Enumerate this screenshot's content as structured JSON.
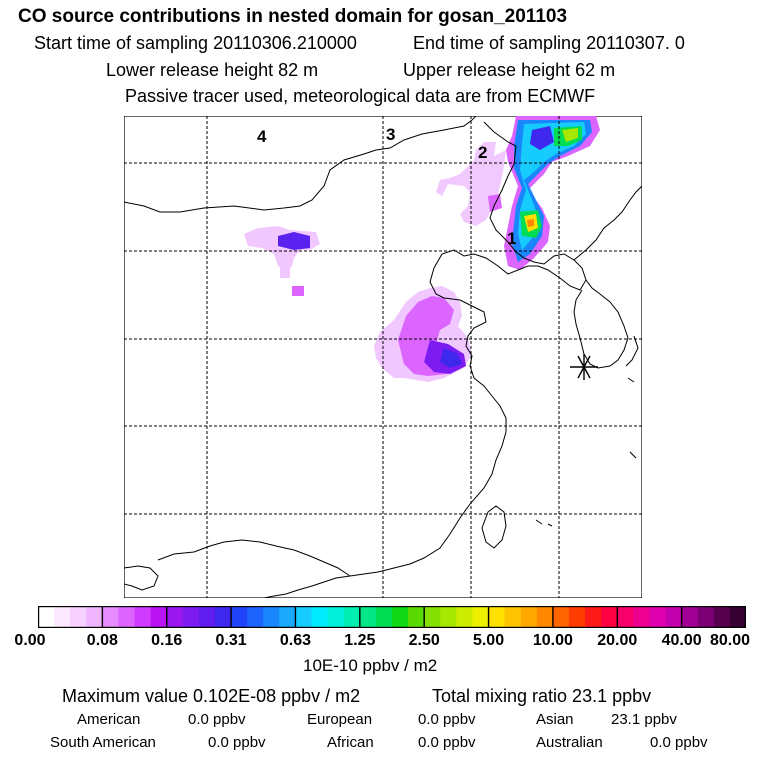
{
  "header": {
    "title": "CO  source contributions in nested domain for gosan_201103",
    "start_sampling": "Start time of sampling 20110306.210000",
    "end_sampling": "End time of sampling 20110307.     0",
    "lower_release": "Lower release height   82 m",
    "upper_release": "Upper release height   62 m",
    "tracer_note": "Passive tracer used, meteorological data are from ECMWF"
  },
  "map": {
    "zone_labels": [
      "4",
      "3",
      "2",
      "1"
    ],
    "receptor_marker": "star-icon"
  },
  "colorbar": {
    "tick_labels": [
      "0.00",
      "0.08",
      "0.16",
      "0.31",
      "0.63",
      "1.25",
      "2.50",
      "5.00",
      "10.00",
      "20.00",
      "40.00",
      "80.00"
    ],
    "colors": [
      "#ffffff",
      "#fce8ff",
      "#f6d0ff",
      "#eeb4ff",
      "#e58dff",
      "#dc64ff",
      "#cf3cff",
      "#ba14f4",
      "#9a18ee",
      "#7d1cf0",
      "#601eee",
      "#3f28ee",
      "#2244f8",
      "#1c64fb",
      "#1a86fb",
      "#1aa8fb",
      "#16ccff",
      "#00ecff",
      "#00f0dc",
      "#00eeb0",
      "#00e686",
      "#00dc54",
      "#10d814",
      "#5ada00",
      "#84e000",
      "#a8e800",
      "#cced00",
      "#eef000",
      "#ffe000",
      "#ffc400",
      "#ffa800",
      "#ff8800",
      "#ff6400",
      "#ff3c00",
      "#ff1a1a",
      "#ff0044",
      "#f8006a",
      "#ee0090",
      "#de00ac",
      "#c200ae",
      "#a20094",
      "#7c0074",
      "#56004e",
      "#360030"
    ],
    "units": "10E-10 ppbv / m2"
  },
  "stats": {
    "max_value": "Maximum value  0.102E-08 ppbv / m2",
    "total_mixing": "Total mixing ratio       23.1 ppbv",
    "regions": [
      {
        "name": "American",
        "value": "0.0 ppbv"
      },
      {
        "name": "European",
        "value": "0.0 ppbv"
      },
      {
        "name": "Asian",
        "value": "23.1 ppbv"
      },
      {
        "name": "South American",
        "value": "0.0 ppbv"
      },
      {
        "name": "African",
        "value": "0.0 ppbv"
      },
      {
        "name": "Australian",
        "value": "0.0 ppbv"
      }
    ]
  }
}
